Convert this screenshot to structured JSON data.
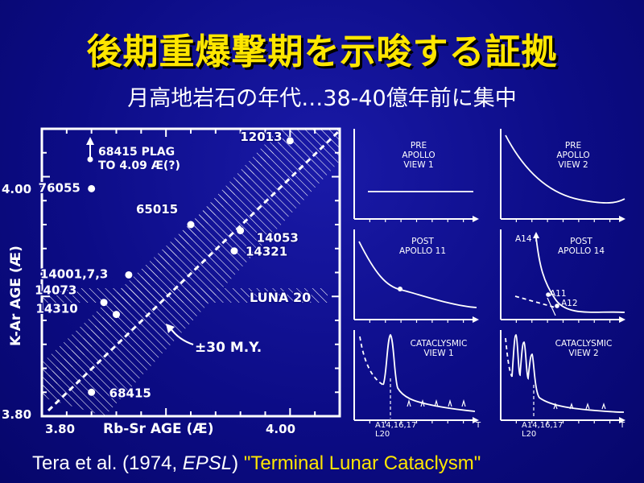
{
  "title": "後期重爆撃期を示唆する証拠",
  "subtitle": "月高地岩石の年代…38-40億年前に集中",
  "caption": {
    "prefix": "Tera et al. (1974, ",
    "journal": "EPSL",
    "mid": ") ",
    "quote": "\"Terminal Lunar Cataclysm\""
  },
  "colors": {
    "title": "#ffe600",
    "background": "#0c0c86",
    "ink": "#ffffff",
    "quote": "#ffe600"
  },
  "chart_data": [
    {
      "type": "scatter",
      "xlabel": "Rb-Sr AGE (Æ)",
      "ylabel": "K-Ar AGE (Æ)",
      "xlim": [
        3.8,
        4.04
      ],
      "ylim": [
        3.8,
        4.04
      ],
      "x_ticks": [
        "3.80",
        "4.00"
      ],
      "y_ticks": [
        "3.80",
        "4.00"
      ],
      "band_label": "±30 M.Y.",
      "luna_label": "LUNA 20",
      "arrow_label": [
        "68415 PLAG",
        "TO 4.09 Æ(?)"
      ],
      "points": [
        {
          "name": "12013",
          "x": 4.0,
          "y": 4.03
        },
        {
          "name": "76055",
          "x": 3.84,
          "y": 3.99
        },
        {
          "name": "65015",
          "x": 3.92,
          "y": 3.96
        },
        {
          "name": "14053",
          "x": 3.96,
          "y": 3.955
        },
        {
          "name": "14321",
          "x": 3.955,
          "y": 3.938
        },
        {
          "name": "14001,7,3",
          "x": 3.87,
          "y": 3.918
        },
        {
          "name": "14073",
          "x": 3.85,
          "y": 3.895
        },
        {
          "name": "14310",
          "x": 3.86,
          "y": 3.885
        },
        {
          "name": "68415",
          "x": 3.84,
          "y": 3.82
        }
      ]
    },
    {
      "type": "line",
      "label": [
        "PRE",
        "APOLLO",
        "VIEW 1"
      ]
    },
    {
      "type": "line",
      "label": [
        "PRE",
        "APOLLO",
        "VIEW 2"
      ]
    },
    {
      "type": "line",
      "label": [
        "POST",
        "APOLLO 11"
      ]
    },
    {
      "type": "line",
      "label": [
        "POST",
        "APOLLO 14"
      ],
      "annotations": [
        "A14",
        "A11",
        "A12"
      ]
    },
    {
      "type": "line",
      "label": [
        "CATACLYSMIC",
        "VIEW 1"
      ],
      "x_marker": [
        "A14,16,17",
        "L20"
      ],
      "x_axis_end": "T"
    },
    {
      "type": "line",
      "label": [
        "CATACLYSMIC",
        "VIEW 2"
      ],
      "x_marker": [
        "A14,16,17",
        "L20"
      ],
      "x_axis_end": "T"
    }
  ]
}
